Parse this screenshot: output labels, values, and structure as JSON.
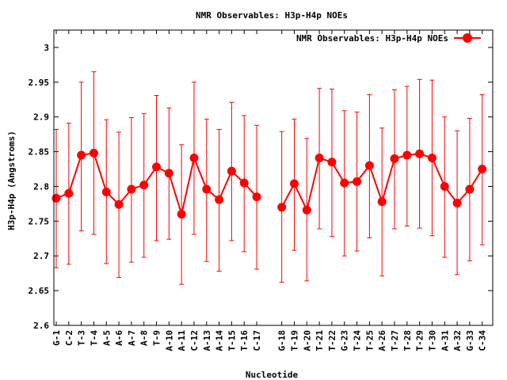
{
  "chart_data": {
    "type": "line",
    "title": "NMR Observables: H3p-H4p NOEs",
    "xlabel": "Nucleotide",
    "ylabel": "H3p-H4p (Angstroms)",
    "ylim": [
      2.6,
      3.025
    ],
    "yticks": [
      "2.6",
      "2.65",
      "2.7",
      "2.75",
      "2.8",
      "2.85",
      "2.9",
      "2.95",
      "3"
    ],
    "grid": false,
    "legend_position": "top-right",
    "categories": [
      "G-1",
      "C-2",
      "T-3",
      "T-4",
      "A-5",
      "A-6",
      "A-7",
      "A-8",
      "T-9",
      "A-10",
      "A-11",
      "C-12",
      "A-13",
      "A-14",
      "T-15",
      "T-16",
      "C-17",
      "G-18",
      "T-19",
      "A-20",
      "T-21",
      "T-22",
      "G-23",
      "T-24",
      "T-25",
      "A-26",
      "T-27",
      "T-28",
      "T-29",
      "T-30",
      "A-31",
      "A-32",
      "G-33",
      "C-34"
    ],
    "series": [
      {
        "name": "NMR Observables: H3p-H4p NOEs",
        "color": "#ff0000",
        "segments": [
          [
            {
              "x": "G-1",
              "y": 2.783,
              "lo": 2.683,
              "hi": 2.882
            },
            {
              "x": "C-2",
              "y": 2.79,
              "lo": 2.688,
              "hi": 2.891
            },
            {
              "x": "T-3",
              "y": 2.845,
              "lo": 2.736,
              "hi": 2.95
            },
            {
              "x": "T-4",
              "y": 2.848,
              "lo": 2.731,
              "hi": 2.965
            },
            {
              "x": "A-5",
              "y": 2.792,
              "lo": 2.689,
              "hi": 2.896
            },
            {
              "x": "A-6",
              "y": 2.774,
              "lo": 2.669,
              "hi": 2.878
            },
            {
              "x": "A-7",
              "y": 2.796,
              "lo": 2.691,
              "hi": 2.899
            },
            {
              "x": "A-8",
              "y": 2.802,
              "lo": 2.698,
              "hi": 2.905
            },
            {
              "x": "T-9",
              "y": 2.828,
              "lo": 2.722,
              "hi": 2.931
            },
            {
              "x": "A-10",
              "y": 2.819,
              "lo": 2.724,
              "hi": 2.913
            },
            {
              "x": "A-11",
              "y": 2.76,
              "lo": 2.659,
              "hi": 2.86
            },
            {
              "x": "C-12",
              "y": 2.841,
              "lo": 2.731,
              "hi": 2.95
            },
            {
              "x": "A-13",
              "y": 2.796,
              "lo": 2.692,
              "hi": 2.897
            },
            {
              "x": "A-14",
              "y": 2.781,
              "lo": 2.678,
              "hi": 2.882
            },
            {
              "x": "T-15",
              "y": 2.822,
              "lo": 2.722,
              "hi": 2.921
            },
            {
              "x": "T-16",
              "y": 2.805,
              "lo": 2.706,
              "hi": 2.902
            },
            {
              "x": "C-17",
              "y": 2.785,
              "lo": 2.681,
              "hi": 2.888
            }
          ],
          [
            {
              "x": "G-18",
              "y": 2.77,
              "lo": 2.662,
              "hi": 2.879
            },
            {
              "x": "T-19",
              "y": 2.804,
              "lo": 2.708,
              "hi": 2.897
            },
            {
              "x": "A-20",
              "y": 2.766,
              "lo": 2.664,
              "hi": 2.869
            },
            {
              "x": "T-21",
              "y": 2.841,
              "lo": 2.739,
              "hi": 2.941
            },
            {
              "x": "T-22",
              "y": 2.835,
              "lo": 2.728,
              "hi": 2.94
            },
            {
              "x": "G-23",
              "y": 2.805,
              "lo": 2.7,
              "hi": 2.909
            },
            {
              "x": "T-24",
              "y": 2.807,
              "lo": 2.707,
              "hi": 2.907
            },
            {
              "x": "T-25",
              "y": 2.83,
              "lo": 2.726,
              "hi": 2.932
            },
            {
              "x": "A-26",
              "y": 2.778,
              "lo": 2.671,
              "hi": 2.884
            },
            {
              "x": "T-27",
              "y": 2.84,
              "lo": 2.739,
              "hi": 2.939
            },
            {
              "x": "T-28",
              "y": 2.845,
              "lo": 2.743,
              "hi": 2.944
            },
            {
              "x": "T-29",
              "y": 2.847,
              "lo": 2.74,
              "hi": 2.954
            },
            {
              "x": "T-30",
              "y": 2.841,
              "lo": 2.729,
              "hi": 2.953
            },
            {
              "x": "A-31",
              "y": 2.8,
              "lo": 2.698,
              "hi": 2.9
            },
            {
              "x": "A-32",
              "y": 2.776,
              "lo": 2.673,
              "hi": 2.88
            },
            {
              "x": "G-33",
              "y": 2.796,
              "lo": 2.693,
              "hi": 2.898
            },
            {
              "x": "C-34",
              "y": 2.825,
              "lo": 2.716,
              "hi": 2.932
            }
          ]
        ]
      }
    ]
  }
}
